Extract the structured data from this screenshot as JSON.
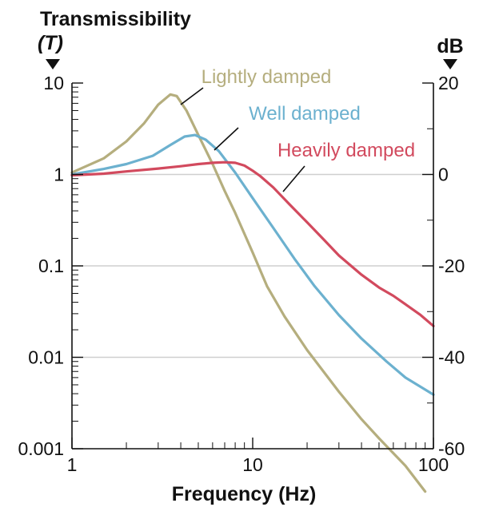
{
  "chart_data": {
    "type": "line",
    "title": "",
    "ylabel_left_line1": "Transmissibility",
    "ylabel_left_line2": "(T)",
    "ylabel_right": "dB",
    "xlabel": "Frequency (Hz)",
    "x_scale": "log",
    "y_scale": "log",
    "xlim": [
      1,
      100
    ],
    "ylim": [
      0.001,
      10
    ],
    "y2lim": [
      -60,
      20
    ],
    "x_ticks": [
      "1",
      "10",
      "100"
    ],
    "y_ticks_left": [
      "10",
      "1",
      "0.1",
      "0.01",
      "0.001"
    ],
    "y_ticks_right": [
      "20",
      "0",
      "-20",
      "-40",
      "-60"
    ],
    "grid": "horizontal at decades",
    "series": [
      {
        "name": "Lightly damped",
        "color": "#b5ae7e",
        "points": [
          [
            1,
            1.05
          ],
          [
            1.5,
            1.5
          ],
          [
            2,
            2.3
          ],
          [
            2.5,
            3.6
          ],
          [
            3,
            5.8
          ],
          [
            3.5,
            7.5
          ],
          [
            3.8,
            7.2
          ],
          [
            4.3,
            5.0
          ],
          [
            5,
            2.7
          ],
          [
            6,
            1.3
          ],
          [
            7,
            0.66
          ],
          [
            8,
            0.38
          ],
          [
            10,
            0.14
          ],
          [
            12,
            0.06
          ],
          [
            15,
            0.028
          ],
          [
            20,
            0.012
          ],
          [
            30,
            0.0042
          ],
          [
            40,
            0.0021
          ],
          [
            50,
            0.0013
          ],
          [
            70,
            0.00065
          ],
          [
            90,
            0.00034
          ]
        ]
      },
      {
        "name": "Well damped",
        "color": "#6cb1cf",
        "points": [
          [
            1,
            1.0
          ],
          [
            1.5,
            1.15
          ],
          [
            2,
            1.3
          ],
          [
            2.8,
            1.6
          ],
          [
            3.5,
            2.1
          ],
          [
            4.2,
            2.6
          ],
          [
            4.8,
            2.7
          ],
          [
            5.5,
            2.4
          ],
          [
            6.5,
            1.8
          ],
          [
            8,
            1.05
          ],
          [
            10,
            0.55
          ],
          [
            13,
            0.26
          ],
          [
            17,
            0.12
          ],
          [
            22,
            0.06
          ],
          [
            30,
            0.029
          ],
          [
            40,
            0.016
          ],
          [
            55,
            0.009
          ],
          [
            70,
            0.006
          ],
          [
            100,
            0.0039
          ]
        ]
      },
      {
        "name": "Heavily damped",
        "color": "#d24a5e",
        "points": [
          [
            1,
            0.98
          ],
          [
            1.5,
            1.02
          ],
          [
            2,
            1.08
          ],
          [
            3,
            1.16
          ],
          [
            4,
            1.23
          ],
          [
            5,
            1.3
          ],
          [
            6,
            1.34
          ],
          [
            7,
            1.36
          ],
          [
            8,
            1.34
          ],
          [
            9,
            1.25
          ],
          [
            10,
            1.1
          ],
          [
            11,
            0.96
          ],
          [
            13,
            0.72
          ],
          [
            16,
            0.47
          ],
          [
            20,
            0.3
          ],
          [
            25,
            0.19
          ],
          [
            30,
            0.13
          ],
          [
            40,
            0.08
          ],
          [
            50,
            0.058
          ],
          [
            60,
            0.047
          ],
          [
            70,
            0.038
          ],
          [
            85,
            0.029
          ],
          [
            100,
            0.022
          ]
        ]
      }
    ]
  }
}
